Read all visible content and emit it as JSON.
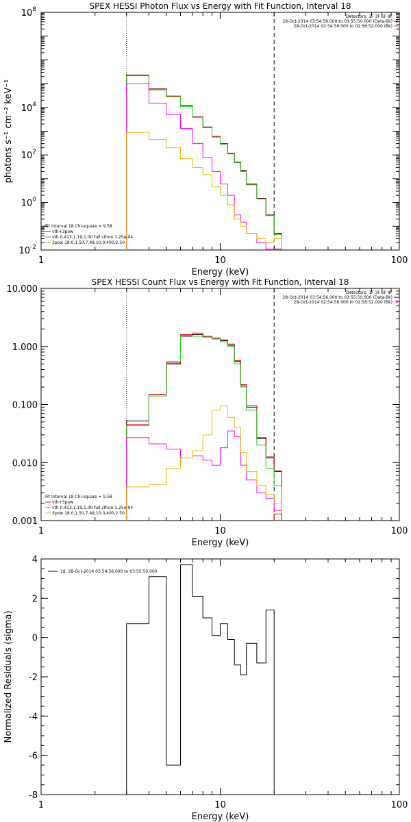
{
  "chart_data": [
    {
      "type": "line",
      "title": "SPEX HESSI Photon Flux vs Energy with Fit Function, Interval 18",
      "xlabel": "Energy (keV)",
      "ylabel": "photons s⁻¹ cm⁻² keV⁻¹",
      "xscale": "log",
      "yscale": "log",
      "xlim": [
        1,
        100
      ],
      "ylim": [
        0.01,
        100000000
      ],
      "x_ticks": [
        {
          "v": 1,
          "label": "1"
        },
        {
          "v": 10,
          "label": "10"
        },
        {
          "v": 100,
          "label": "100"
        }
      ],
      "y_ticks": [
        {
          "v": 0.01,
          "base": "10",
          "exp": "-2"
        },
        {
          "v": 1,
          "base": "10",
          "exp": "0"
        },
        {
          "v": 100,
          "base": "10",
          "exp": "2"
        },
        {
          "v": 10000,
          "base": "10",
          "exp": "4"
        },
        {
          "v": 100000000,
          "base": "10",
          "exp": "8"
        }
      ],
      "info_lines": [
        "Detectors: 1F 3F 6F 9F",
        "28-Oct-2014 03:54:56.000 to 03:55:50.000 (Data-Bk)",
        "28-Oct-2014 02:54:56.000 to 02:56:52.000 (Bk)"
      ],
      "legend_lines": [
        "Fit Interval 18   Chi-square = 9.58",
        "vth+3pow",
        "vth 0.413,1.19,1.00  full cthon 1.25e-04",
        "3pow 18.0,1.50,7.49,10.0,400,2.50"
      ],
      "vlines": [
        {
          "x": 3,
          "style": "dotted"
        },
        {
          "x": 20,
          "style": "dashed"
        }
      ],
      "edges": [
        3,
        4,
        5,
        6,
        7,
        8,
        9,
        10,
        11,
        12,
        13,
        14,
        16,
        18,
        20,
        22
      ],
      "series": [
        {
          "color": "#000000",
          "values": [
            230000,
            60000,
            30000,
            12000,
            4000,
            1500,
            600,
            300,
            120,
            50,
            22,
            6,
            1.5,
            0.3,
            0.05
          ]
        },
        {
          "color": "#e8000b",
          "values": [
            225000,
            59000,
            29500,
            11800,
            3950,
            1480,
            590,
            295,
            118,
            49,
            21,
            5.8,
            1.45,
            0.29,
            0.048
          ]
        },
        {
          "color": "#22cc22",
          "values": [
            215000,
            55000,
            28000,
            11000,
            3800,
            1400,
            560,
            280,
            110,
            47,
            20,
            5.5,
            1.4,
            0.28,
            0.045
          ]
        },
        {
          "color": "#ff00ff",
          "values": [
            100000,
            15000,
            5000,
            1300,
            300,
            80,
            20,
            6,
            2,
            0.3,
            0.15,
            0.05,
            0.02,
            0.011,
            0.007
          ]
        },
        {
          "color": "#e8b800",
          "values": [
            900,
            450,
            200,
            70,
            30,
            15,
            4.5,
            2,
            0.8,
            0.2,
            0.1,
            0.05,
            0.03,
            0.02,
            0.03
          ]
        }
      ],
      "extra_step": {
        "x0": 20,
        "x1": 22,
        "y": 0.011,
        "color": "#e8000b"
      }
    },
    {
      "type": "line",
      "title": "SPEX HESSI Count Flux vs Energy with Fit Function, Interval 18",
      "xlabel": "Energy (keV)",
      "ylabel": "",
      "xscale": "log",
      "yscale": "log",
      "xlim": [
        1,
        100
      ],
      "ylim": [
        0.001,
        10
      ],
      "x_ticks": [
        {
          "v": 1,
          "label": "1"
        },
        {
          "v": 10,
          "label": "10"
        },
        {
          "v": 100,
          "label": "100"
        }
      ],
      "y_ticks": [
        {
          "v": 0.001,
          "label": "0.001"
        },
        {
          "v": 0.01,
          "label": "0.010"
        },
        {
          "v": 0.1,
          "label": "0.100"
        },
        {
          "v": 1,
          "label": "1.000"
        },
        {
          "v": 10,
          "label": "10.000"
        }
      ],
      "info_lines": [
        "Detectors: 1F 3F 6F 9F",
        "28-Oct-2014 03:54:56.000 to 03:55:50.000 (Data-Bk)",
        "28-Oct-2014 02:54:56.000 to 02:56:52.000 (Bk)"
      ],
      "legend_lines": [
        "Fit Interval 18   Chi-square = 9.58",
        "vth+3pow",
        "vth 0.413,1.19,1.00  full cthon 1.25e-04",
        "3pow 18.0,1.50,7.49,10.0,400,2.50"
      ],
      "vlines": [
        {
          "x": 3,
          "style": "dotted"
        },
        {
          "x": 20,
          "style": "dashed"
        }
      ],
      "edges": [
        3,
        4,
        5,
        6,
        7,
        8,
        9,
        10,
        11,
        12,
        13,
        14,
        16,
        18,
        20,
        22
      ],
      "series": [
        {
          "color": "#000000",
          "values": [
            0.052,
            0.15,
            0.5,
            1.5,
            1.6,
            1.45,
            1.35,
            1.25,
            1.05,
            0.55,
            0.21,
            0.09,
            0.026,
            0.012,
            0.007
          ]
        },
        {
          "color": "#e8000b",
          "values": [
            0.045,
            0.15,
            0.52,
            1.6,
            1.7,
            1.5,
            1.4,
            1.3,
            1.1,
            0.57,
            0.22,
            0.095,
            0.027,
            0.0125,
            0.0072
          ]
        },
        {
          "color": "#22cc22",
          "values": [
            0.043,
            0.14,
            0.55,
            1.55,
            1.5,
            1.45,
            1.35,
            1.2,
            1.0,
            0.5,
            0.2,
            0.08,
            0.02,
            0.008,
            0.004
          ]
        },
        {
          "color": "#ff00ff",
          "values": [
            0.027,
            0.021,
            0.017,
            0.012,
            0.013,
            0.011,
            0.009,
            0.018,
            0.035,
            0.028,
            0.009,
            0.005,
            0.003,
            0.0024,
            0.0015
          ]
        },
        {
          "color": "#e8b800",
          "values": [
            0.0038,
            0.0042,
            0.008,
            0.012,
            0.016,
            0.03,
            0.08,
            0.095,
            0.06,
            0.04,
            0.015,
            0.007,
            0.004,
            0.0028,
            0.002
          ]
        }
      ],
      "extra_step": {
        "x0": 20,
        "x1": 22,
        "y": 0.0013,
        "color": "#e8000b"
      }
    },
    {
      "type": "line",
      "title": "",
      "xlabel": "Energy (keV)",
      "ylabel": "Normalized Residuals (sigma)",
      "xscale": "log",
      "yscale": "linear",
      "xlim": [
        1,
        100
      ],
      "ylim": [
        -8,
        4
      ],
      "x_ticks": [
        {
          "v": 1,
          "label": "1"
        },
        {
          "v": 10,
          "label": "10"
        },
        {
          "v": 100,
          "label": "100"
        }
      ],
      "y_ticks": [
        {
          "v": -8,
          "label": "-8"
        },
        {
          "v": -6,
          "label": "-6"
        },
        {
          "v": -4,
          "label": "-4"
        },
        {
          "v": -2,
          "label": "-2"
        },
        {
          "v": 0,
          "label": "0"
        },
        {
          "v": 2,
          "label": "2"
        },
        {
          "v": 4,
          "label": "4"
        }
      ],
      "legend_lines": [
        "18. 28-Oct-2014 03:54:56.000 to 03:55:50.000"
      ],
      "edges": [
        3,
        4,
        5,
        6,
        7,
        8,
        9,
        10,
        11,
        12,
        13,
        14,
        16,
        18,
        20
      ],
      "series": [
        {
          "color": "#000000",
          "values": [
            0.7,
            3.1,
            -6.5,
            3.7,
            2.1,
            1.0,
            0.1,
            0.7,
            -0.1,
            -1.4,
            -1.9,
            -0.3,
            -1.3,
            1.4
          ]
        }
      ]
    }
  ]
}
